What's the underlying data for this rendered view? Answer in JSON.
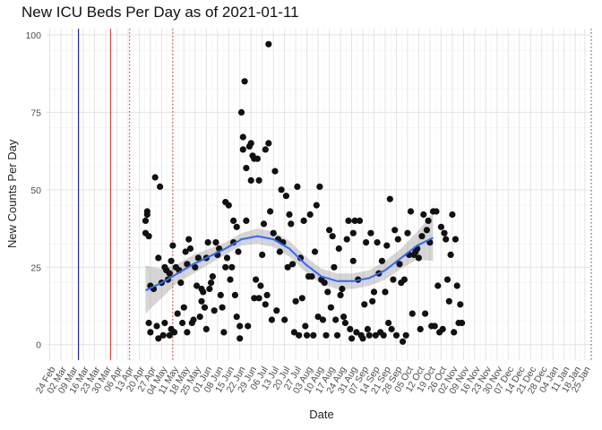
{
  "chart_data": {
    "type": "scatter",
    "title": "New ICU Beds Per Day as of 2021-01-11",
    "xlabel": "Date",
    "ylabel": "New Counts Per Day",
    "ylim": [
      -5,
      102
    ],
    "yticks": [
      0,
      25,
      50,
      75,
      100
    ],
    "xlim_days": [
      -2,
      339
    ],
    "x_tick_labels": [
      "24 Feb",
      "02 Mar",
      "09 Mar",
      "16 Mar",
      "23 Mar",
      "30 Mar",
      "06 Apr",
      "13 Apr",
      "20 Apr",
      "27 Apr",
      "04 May",
      "11 May",
      "18 May",
      "25 May",
      "01 Jun",
      "08 Jun",
      "15 Jun",
      "22 Jun",
      "29 Jun",
      "06 Jul",
      "13 Jul",
      "20 Jul",
      "27 Jul",
      "03 Aug",
      "10 Aug",
      "17 Aug",
      "24 Aug",
      "31 Aug",
      "07 Sep",
      "14 Sep",
      "21 Sep",
      "28 Sep",
      "05 Oct",
      "12 Oct",
      "19 Oct",
      "26 Oct",
      "02 Nov",
      "09 Nov",
      "16 Nov",
      "23 Nov",
      "30 Nov",
      "07 Dec",
      "14 Dec",
      "21 Dec",
      "28 Dec",
      "04 Jan",
      "11 Jan",
      "18 Jan",
      "25 Jan"
    ],
    "x_tick_days": [
      0,
      7,
      14,
      21,
      28,
      35,
      42,
      49,
      56,
      63,
      70,
      77,
      84,
      91,
      98,
      105,
      112,
      119,
      126,
      133,
      140,
      147,
      154,
      161,
      168,
      175,
      182,
      189,
      196,
      203,
      210,
      217,
      224,
      231,
      238,
      245,
      252,
      259,
      266,
      273,
      280,
      287,
      294,
      301,
      308,
      315,
      322,
      329,
      335
    ],
    "vlines": [
      {
        "day": 18,
        "color": "#00008b",
        "style": "solid"
      },
      {
        "day": 38,
        "color": "#d62728",
        "style": "solid"
      },
      {
        "day": 50,
        "color": "#d62728",
        "style": "dotted"
      },
      {
        "day": 77,
        "color": "#d62728",
        "style": "dotted"
      },
      {
        "day": 339,
        "color": "#444444",
        "style": "dotted"
      }
    ],
    "points": [
      [
        60,
        40
      ],
      [
        60,
        36
      ],
      [
        61,
        42
      ],
      [
        61,
        43
      ],
      [
        62,
        35
      ],
      [
        62,
        7
      ],
      [
        63,
        19
      ],
      [
        63,
        4
      ],
      [
        65,
        18
      ],
      [
        66,
        54
      ],
      [
        67,
        6
      ],
      [
        68,
        28
      ],
      [
        68,
        2
      ],
      [
        69,
        51
      ],
      [
        70,
        20
      ],
      [
        71,
        3
      ],
      [
        72,
        25
      ],
      [
        72,
        7
      ],
      [
        73,
        24
      ],
      [
        74,
        21
      ],
      [
        75,
        23
      ],
      [
        75,
        3
      ],
      [
        76,
        27
      ],
      [
        76,
        5
      ],
      [
        77,
        32
      ],
      [
        78,
        4
      ],
      [
        79,
        25
      ],
      [
        80,
        10
      ],
      [
        81,
        24
      ],
      [
        82,
        20
      ],
      [
        83,
        7
      ],
      [
        84,
        12
      ],
      [
        85,
        30
      ],
      [
        86,
        26
      ],
      [
        86,
        4
      ],
      [
        87,
        34
      ],
      [
        88,
        31
      ],
      [
        89,
        7
      ],
      [
        90,
        8
      ],
      [
        91,
        25
      ],
      [
        92,
        19
      ],
      [
        93,
        28
      ],
      [
        94,
        9
      ],
      [
        95,
        18
      ],
      [
        95,
        14
      ],
      [
        96,
        17
      ],
      [
        97,
        12
      ],
      [
        98,
        28
      ],
      [
        98,
        5
      ],
      [
        99,
        33
      ],
      [
        100,
        18
      ],
      [
        101,
        20
      ],
      [
        102,
        22
      ],
      [
        103,
        11
      ],
      [
        104,
        33
      ],
      [
        105,
        29
      ],
      [
        106,
        31
      ],
      [
        107,
        16
      ],
      [
        108,
        12
      ],
      [
        109,
        4
      ],
      [
        110,
        25
      ],
      [
        110,
        46
      ],
      [
        111,
        28
      ],
      [
        112,
        45
      ],
      [
        113,
        21
      ],
      [
        114,
        25
      ],
      [
        115,
        40
      ],
      [
        115,
        33
      ],
      [
        116,
        16
      ],
      [
        117,
        38
      ],
      [
        117,
        9
      ],
      [
        118,
        30
      ],
      [
        119,
        6
      ],
      [
        119,
        2
      ],
      [
        120,
        75
      ],
      [
        121,
        63
      ],
      [
        121,
        67
      ],
      [
        122,
        85
      ],
      [
        123,
        57
      ],
      [
        123,
        40
      ],
      [
        124,
        6
      ],
      [
        125,
        64
      ],
      [
        126,
        65
      ],
      [
        126,
        53
      ],
      [
        127,
        61
      ],
      [
        128,
        60
      ],
      [
        128,
        15
      ],
      [
        129,
        21
      ],
      [
        130,
        60
      ],
      [
        131,
        53
      ],
      [
        131,
        15
      ],
      [
        132,
        19
      ],
      [
        133,
        29
      ],
      [
        134,
        39
      ],
      [
        135,
        63
      ],
      [
        135,
        13
      ],
      [
        136,
        16
      ],
      [
        137,
        97
      ],
      [
        137,
        65
      ],
      [
        138,
        43
      ],
      [
        139,
        8
      ],
      [
        140,
        36
      ],
      [
        141,
        56
      ],
      [
        142,
        11
      ],
      [
        143,
        34
      ],
      [
        144,
        30
      ],
      [
        145,
        50
      ],
      [
        146,
        33
      ],
      [
        147,
        8
      ],
      [
        148,
        48
      ],
      [
        149,
        25
      ],
      [
        150,
        42
      ],
      [
        151,
        39
      ],
      [
        152,
        26
      ],
      [
        153,
        4
      ],
      [
        154,
        14
      ],
      [
        155,
        51
      ],
      [
        156,
        3
      ],
      [
        157,
        28
      ],
      [
        158,
        15
      ],
      [
        159,
        40
      ],
      [
        160,
        6
      ],
      [
        161,
        3
      ],
      [
        162,
        22
      ],
      [
        163,
        42
      ],
      [
        164,
        22
      ],
      [
        165,
        3
      ],
      [
        166,
        30
      ],
      [
        167,
        45
      ],
      [
        168,
        9
      ],
      [
        169,
        51
      ],
      [
        170,
        21
      ],
      [
        171,
        8
      ],
      [
        172,
        20
      ],
      [
        173,
        3
      ],
      [
        174,
        17
      ],
      [
        175,
        37
      ],
      [
        176,
        12
      ],
      [
        177,
        35
      ],
      [
        178,
        25
      ],
      [
        179,
        8
      ],
      [
        180,
        3
      ],
      [
        181,
        31
      ],
      [
        182,
        16
      ],
      [
        183,
        18
      ],
      [
        184,
        9
      ],
      [
        185,
        7
      ],
      [
        186,
        34
      ],
      [
        187,
        40
      ],
      [
        188,
        5
      ],
      [
        189,
        2
      ],
      [
        190,
        27
      ],
      [
        190,
        36
      ],
      [
        191,
        40
      ],
      [
        192,
        4
      ],
      [
        193,
        21
      ],
      [
        194,
        40
      ],
      [
        195,
        3
      ],
      [
        196,
        2
      ],
      [
        197,
        13
      ],
      [
        198,
        33
      ],
      [
        199,
        5
      ],
      [
        200,
        3
      ],
      [
        201,
        36
      ],
      [
        202,
        14
      ],
      [
        203,
        17
      ],
      [
        204,
        3
      ],
      [
        205,
        33
      ],
      [
        206,
        23
      ],
      [
        207,
        4
      ],
      [
        208,
        27
      ],
      [
        209,
        3
      ],
      [
        210,
        17
      ],
      [
        211,
        32
      ],
      [
        212,
        7
      ],
      [
        213,
        47
      ],
      [
        214,
        5
      ],
      [
        215,
        21
      ],
      [
        216,
        37
      ],
      [
        217,
        3
      ],
      [
        218,
        34
      ],
      [
        219,
        26
      ],
      [
        220,
        20
      ],
      [
        221,
        1
      ],
      [
        222,
        21
      ],
      [
        223,
        3
      ],
      [
        224,
        36
      ],
      [
        225,
        29
      ],
      [
        226,
        43
      ],
      [
        227,
        10
      ],
      [
        228,
        29
      ],
      [
        229,
        30
      ],
      [
        230,
        31
      ],
      [
        231,
        28
      ],
      [
        232,
        5
      ],
      [
        233,
        35
      ],
      [
        234,
        42
      ],
      [
        235,
        10
      ],
      [
        236,
        37
      ],
      [
        237,
        40
      ],
      [
        238,
        33
      ],
      [
        239,
        6
      ],
      [
        240,
        43
      ],
      [
        241,
        6
      ],
      [
        242,
        43
      ],
      [
        243,
        19
      ],
      [
        244,
        4
      ],
      [
        245,
        38
      ],
      [
        246,
        5
      ],
      [
        247,
        36
      ],
      [
        248,
        34
      ],
      [
        249,
        21
      ],
      [
        250,
        14
      ],
      [
        251,
        29
      ],
      [
        252,
        42
      ],
      [
        253,
        4
      ],
      [
        254,
        34
      ],
      [
        255,
        19
      ],
      [
        256,
        7
      ],
      [
        257,
        13
      ],
      [
        258,
        7
      ]
    ],
    "smooth": [
      [
        60,
        17.5
      ],
      [
        70,
        20
      ],
      [
        80,
        23
      ],
      [
        90,
        26
      ],
      [
        100,
        28.5
      ],
      [
        110,
        31
      ],
      [
        120,
        34
      ],
      [
        130,
        35
      ],
      [
        140,
        34
      ],
      [
        150,
        31
      ],
      [
        160,
        26
      ],
      [
        170,
        22
      ],
      [
        180,
        20.5
      ],
      [
        190,
        20.5
      ],
      [
        200,
        21.5
      ],
      [
        210,
        24
      ],
      [
        220,
        28
      ],
      [
        230,
        32
      ],
      [
        240,
        34.5
      ]
    ],
    "smooth_band": [
      [
        60,
        10,
        25.5
      ],
      [
        70,
        15,
        24.5
      ],
      [
        80,
        20,
        26
      ],
      [
        90,
        23,
        29
      ],
      [
        100,
        26,
        31
      ],
      [
        110,
        29,
        33
      ],
      [
        120,
        32,
        36
      ],
      [
        130,
        32.5,
        37.5
      ],
      [
        140,
        31.5,
        36.5
      ],
      [
        150,
        28.5,
        33.5
      ],
      [
        160,
        23.5,
        28.5
      ],
      [
        170,
        19.5,
        24.5
      ],
      [
        180,
        18,
        23
      ],
      [
        190,
        18,
        23
      ],
      [
        200,
        19,
        24
      ],
      [
        210,
        21,
        27
      ],
      [
        220,
        24.5,
        31
      ],
      [
        230,
        27.5,
        36.5
      ],
      [
        240,
        27,
        42.5
      ]
    ]
  }
}
